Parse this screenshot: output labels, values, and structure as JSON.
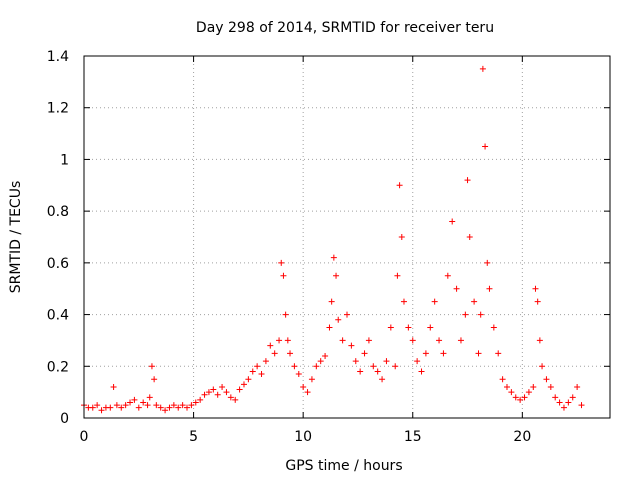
{
  "chart_data": {
    "type": "scatter",
    "title": "Day 298 of 2014, SRMTID for receiver teru",
    "xlabel": "GPS time / hours",
    "ylabel": "SRMTID / TECUs",
    "xlim": [
      0,
      24
    ],
    "ylim": [
      0,
      1.4
    ],
    "xticks": [
      0,
      5,
      10,
      15,
      20
    ],
    "yticks": [
      0,
      0.2,
      0.4,
      0.6,
      0.8,
      1,
      1.2,
      1.4
    ],
    "xtick_labels": [
      "0",
      "5",
      "10",
      "15",
      "20"
    ],
    "ytick_labels": [
      "0",
      "0.2",
      "0.4",
      "0.6",
      "0.8",
      "1",
      "1.2",
      "1.4"
    ],
    "grid": true,
    "marker": "+",
    "color": "#ff0000",
    "series": [
      {
        "name": "SRMTID",
        "x": [
          0.0,
          0.2,
          0.4,
          0.6,
          0.8,
          1.0,
          1.2,
          1.35,
          1.5,
          1.7,
          1.9,
          2.1,
          2.3,
          2.5,
          2.7,
          2.9,
          3.0,
          3.1,
          3.2,
          3.3,
          3.5,
          3.7,
          3.9,
          4.1,
          4.3,
          4.5,
          4.7,
          4.9,
          5.1,
          5.3,
          5.5,
          5.7,
          5.9,
          6.1,
          6.3,
          6.5,
          6.7,
          6.9,
          7.1,
          7.3,
          7.5,
          7.7,
          7.9,
          8.1,
          8.3,
          8.5,
          8.7,
          8.9,
          9.0,
          9.1,
          9.2,
          9.3,
          9.4,
          9.6,
          9.8,
          10.0,
          10.2,
          10.4,
          10.6,
          10.8,
          11.0,
          11.2,
          11.3,
          11.4,
          11.5,
          11.6,
          11.8,
          12.0,
          12.2,
          12.4,
          12.6,
          12.8,
          13.0,
          13.2,
          13.4,
          13.6,
          13.8,
          14.0,
          14.2,
          14.3,
          14.4,
          14.5,
          14.6,
          14.8,
          15.0,
          15.2,
          15.4,
          15.6,
          15.8,
          16.0,
          16.2,
          16.4,
          16.6,
          16.8,
          17.0,
          17.2,
          17.4,
          17.5,
          17.6,
          17.8,
          18.0,
          18.1,
          18.2,
          18.3,
          18.4,
          18.5,
          18.7,
          18.9,
          19.1,
          19.3,
          19.5,
          19.7,
          19.9,
          20.1,
          20.3,
          20.5,
          20.6,
          20.7,
          20.8,
          20.9,
          21.1,
          21.3,
          21.5,
          21.7,
          21.9,
          22.1,
          22.3,
          22.5,
          22.7
        ],
        "y": [
          0.05,
          0.04,
          0.04,
          0.05,
          0.03,
          0.04,
          0.04,
          0.12,
          0.05,
          0.04,
          0.05,
          0.06,
          0.07,
          0.04,
          0.06,
          0.05,
          0.08,
          0.2,
          0.15,
          0.05,
          0.04,
          0.03,
          0.04,
          0.05,
          0.04,
          0.05,
          0.04,
          0.05,
          0.06,
          0.07,
          0.09,
          0.1,
          0.11,
          0.09,
          0.12,
          0.1,
          0.08,
          0.07,
          0.11,
          0.13,
          0.15,
          0.18,
          0.2,
          0.17,
          0.22,
          0.28,
          0.25,
          0.3,
          0.6,
          0.55,
          0.4,
          0.3,
          0.25,
          0.2,
          0.17,
          0.12,
          0.1,
          0.15,
          0.2,
          0.22,
          0.24,
          0.35,
          0.45,
          0.62,
          0.55,
          0.38,
          0.3,
          0.4,
          0.28,
          0.22,
          0.18,
          0.25,
          0.3,
          0.2,
          0.18,
          0.15,
          0.22,
          0.35,
          0.2,
          0.55,
          0.9,
          0.7,
          0.45,
          0.35,
          0.3,
          0.22,
          0.18,
          0.25,
          0.35,
          0.45,
          0.3,
          0.25,
          0.55,
          0.76,
          0.5,
          0.3,
          0.4,
          0.92,
          0.7,
          0.45,
          0.25,
          0.4,
          1.35,
          1.05,
          0.6,
          0.5,
          0.35,
          0.25,
          0.15,
          0.12,
          0.1,
          0.08,
          0.07,
          0.08,
          0.1,
          0.12,
          0.5,
          0.45,
          0.3,
          0.2,
          0.15,
          0.12,
          0.08,
          0.06,
          0.04,
          0.06,
          0.08,
          0.12,
          0.05
        ]
      }
    ]
  }
}
